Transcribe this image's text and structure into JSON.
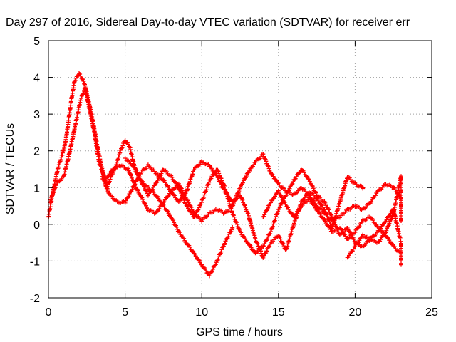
{
  "chart_data": {
    "type": "scatter",
    "title": "Day 297 of 2016, Sidereal Day-to-day VTEC variation (SDTVAR) for receiver err",
    "xlabel": "GPS time / hours",
    "ylabel": "SDTVAR / TECUs",
    "xlim": [
      0,
      25
    ],
    "ylim": [
      -2,
      5
    ],
    "xticks": [
      "0",
      "5",
      "10",
      "15",
      "20",
      "25"
    ],
    "yticks": [
      "-2",
      "-1",
      "0",
      "1",
      "2",
      "3",
      "4",
      "5"
    ],
    "grid": true,
    "marker": "plus",
    "color": "#ff0000",
    "series": [
      {
        "points": [
          [
            0,
            0.2
          ],
          [
            0.3,
            0.9
          ],
          [
            0.6,
            1.5
          ],
          [
            0.9,
            1.9
          ],
          [
            1.1,
            2.2
          ],
          [
            1.3,
            2.8
          ],
          [
            1.5,
            3.4
          ],
          [
            1.7,
            3.9
          ],
          [
            2.0,
            4.1
          ],
          [
            2.3,
            3.9
          ],
          [
            2.6,
            3.4
          ],
          [
            2.9,
            2.8
          ],
          [
            3.2,
            2.1
          ],
          [
            3.5,
            1.5
          ],
          [
            3.8,
            1.0
          ],
          [
            4.1,
            1.3
          ],
          [
            4.4,
            1.6
          ],
          [
            4.7,
            2.0
          ],
          [
            5.0,
            2.3
          ],
          [
            5.3,
            2.1
          ],
          [
            5.6,
            1.6
          ],
          [
            6.0,
            1.2
          ],
          [
            6.5,
            1.0
          ],
          [
            7.0,
            0.8
          ],
          [
            7.5,
            0.5
          ],
          [
            8.0,
            0.2
          ],
          [
            8.5,
            -0.2
          ],
          [
            9.0,
            -0.5
          ],
          [
            9.5,
            -0.8
          ],
          [
            10.0,
            -1.1
          ],
          [
            10.5,
            -1.4
          ],
          [
            11.0,
            -1.0
          ],
          [
            11.5,
            -0.5
          ],
          [
            12.0,
            -0.1
          ]
        ]
      },
      {
        "points": [
          [
            0.1,
            0.6
          ],
          [
            0.5,
            1.1
          ],
          [
            1.0,
            1.3
          ],
          [
            1.4,
            2.0
          ],
          [
            1.8,
            2.8
          ],
          [
            2.1,
            3.4
          ],
          [
            2.4,
            3.7
          ],
          [
            2.7,
            3.1
          ],
          [
            3.0,
            2.5
          ],
          [
            3.3,
            1.7
          ],
          [
            3.7,
            1.2
          ],
          [
            4.2,
            1.5
          ],
          [
            4.7,
            1.6
          ],
          [
            5.2,
            1.5
          ],
          [
            5.7,
            1.0
          ],
          [
            6.1,
            0.7
          ],
          [
            6.5,
            0.4
          ],
          [
            7.0,
            0.3
          ],
          [
            7.5,
            0.6
          ],
          [
            8.0,
            0.9
          ],
          [
            8.5,
            1.1
          ],
          [
            9.0,
            0.7
          ],
          [
            9.5,
            0.3
          ],
          [
            10.0,
            0.1
          ],
          [
            10.5,
            0.3
          ],
          [
            11.0,
            0.4
          ],
          [
            11.5,
            0.3
          ],
          [
            12.0,
            0.5
          ],
          [
            12.5,
            1.0
          ],
          [
            13.0,
            1.4
          ],
          [
            13.5,
            1.7
          ],
          [
            14.0,
            1.9
          ],
          [
            14.5,
            1.4
          ],
          [
            15.0,
            1.1
          ],
          [
            15.5,
            0.9
          ],
          [
            16.0,
            0.8
          ],
          [
            16.5,
            1.0
          ],
          [
            17.0,
            0.8
          ],
          [
            17.5,
            0.5
          ],
          [
            18.0,
            0.3
          ],
          [
            18.5,
            0.1
          ],
          [
            19.0,
            0.2
          ],
          [
            19.5,
            0.4
          ],
          [
            20.0,
            0.5
          ],
          [
            20.5,
            0.4
          ],
          [
            21.0,
            0.6
          ],
          [
            21.5,
            0.9
          ],
          [
            22.0,
            1.1
          ],
          [
            22.5,
            1.0
          ],
          [
            23.0,
            0.7
          ]
        ]
      },
      {
        "points": [
          [
            3.5,
            1.3
          ],
          [
            4.0,
            0.8
          ],
          [
            4.5,
            0.6
          ],
          [
            5.0,
            0.6
          ],
          [
            5.5,
            1.0
          ],
          [
            6.0,
            1.4
          ],
          [
            6.5,
            1.6
          ],
          [
            7.0,
            1.4
          ],
          [
            7.5,
            1.2
          ],
          [
            8.0,
            0.9
          ],
          [
            8.5,
            0.6
          ],
          [
            9.0,
            0.9
          ],
          [
            9.5,
            1.5
          ],
          [
            10.0,
            1.7
          ],
          [
            10.5,
            1.6
          ],
          [
            11.0,
            1.3
          ],
          [
            11.5,
            0.9
          ],
          [
            12.0,
            0.6
          ],
          [
            12.5,
            0.8
          ],
          [
            13.0,
            0.3
          ],
          [
            13.5,
            -0.4
          ],
          [
            14.0,
            -0.9
          ],
          [
            14.5,
            -0.5
          ],
          [
            15.0,
            -0.3
          ],
          [
            15.5,
            -0.7
          ],
          [
            16.0,
            0.0
          ],
          [
            16.5,
            0.6
          ],
          [
            17.0,
            0.9
          ],
          [
            17.5,
            0.7
          ],
          [
            18.0,
            0.4
          ],
          [
            18.5,
            -0.1
          ],
          [
            19.0,
            0.6
          ],
          [
            19.5,
            1.3
          ],
          [
            20.0,
            1.1
          ],
          [
            20.5,
            1.0
          ]
        ]
      },
      {
        "points": [
          [
            5.0,
            1.8
          ],
          [
            5.5,
            1.6
          ],
          [
            6.0,
            1.2
          ],
          [
            6.5,
            0.8
          ],
          [
            7.0,
            1.1
          ],
          [
            7.5,
            1.5
          ],
          [
            8.0,
            1.3
          ],
          [
            8.5,
            1.0
          ],
          [
            9.0,
            0.5
          ],
          [
            9.5,
            0.2
          ],
          [
            10.0,
            0.6
          ],
          [
            10.5,
            1.2
          ],
          [
            11.0,
            1.5
          ],
          [
            11.5,
            1.0
          ],
          [
            12.0,
            0.3
          ],
          [
            12.5,
            -0.2
          ],
          [
            13.0,
            -0.5
          ],
          [
            13.5,
            -0.8
          ],
          [
            14.0,
            -0.6
          ],
          [
            14.5,
            -0.2
          ],
          [
            15.0,
            0.4
          ],
          [
            15.5,
            0.8
          ],
          [
            16.0,
            1.2
          ],
          [
            16.5,
            1.5
          ],
          [
            17.0,
            1.2
          ],
          [
            17.5,
            0.8
          ],
          [
            18.0,
            0.6
          ],
          [
            18.5,
            0.2
          ],
          [
            19.0,
            -0.3
          ],
          [
            19.5,
            -0.1
          ],
          [
            20.0,
            -0.5
          ],
          [
            20.5,
            -0.6
          ],
          [
            21.0,
            -0.4
          ],
          [
            21.5,
            -0.2
          ],
          [
            22.0,
            0.1
          ],
          [
            22.5,
            0.4
          ],
          [
            23.0,
            -0.5
          ],
          [
            23.0,
            -1.1
          ]
        ]
      },
      {
        "points": [
          [
            14.0,
            0.2
          ],
          [
            14.5,
            0.6
          ],
          [
            15.0,
            0.9
          ],
          [
            15.5,
            0.5
          ],
          [
            16.0,
            0.2
          ],
          [
            16.5,
            0.5
          ],
          [
            17.0,
            0.7
          ],
          [
            17.5,
            0.4
          ],
          [
            18.0,
            0.1
          ],
          [
            18.5,
            -0.2
          ],
          [
            19.0,
            -0.1
          ],
          [
            19.5,
            -0.4
          ],
          [
            20.0,
            -0.2
          ],
          [
            20.5,
            0.1
          ],
          [
            21.0,
            0.2
          ],
          [
            21.5,
            -0.1
          ],
          [
            22.0,
            -0.3
          ],
          [
            22.5,
            -0.6
          ],
          [
            23.0,
            -0.8
          ]
        ]
      },
      {
        "points": [
          [
            19.5,
            -0.9
          ],
          [
            20.0,
            -0.6
          ],
          [
            20.5,
            -0.3
          ],
          [
            21.0,
            -0.4
          ],
          [
            21.5,
            -0.5
          ],
          [
            22.0,
            -0.2
          ],
          [
            22.5,
            0.3
          ],
          [
            22.8,
            0.9
          ],
          [
            23.0,
            1.3
          ],
          [
            23.0,
            0.1
          ]
        ]
      }
    ]
  }
}
